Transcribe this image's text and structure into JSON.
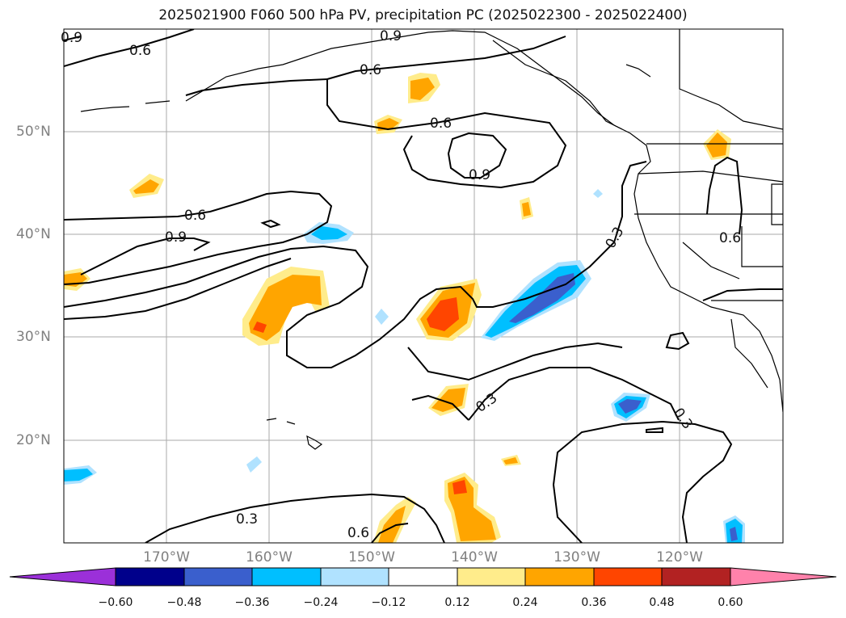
{
  "title": "2025021900 F060 500 hPa PV, precipitation PC (2025022300 - 2025022400)",
  "longitude_labels": [
    "170°W",
    "160°W",
    "150°W",
    "140°W",
    "130°W",
    "120°W"
  ],
  "latitude_labels": [
    "50°N",
    "40°N",
    "30°N",
    "20°N"
  ],
  "contour_labels": [
    "0.9",
    "0.6",
    "0.9",
    "0.6",
    "0.6",
    "0.9",
    "0.6",
    "0.9",
    "0.3",
    "0.6",
    "0.3",
    "0.3",
    "0.3",
    "0.6"
  ],
  "colorbar": {
    "ticks": [
      "−0.60",
      "−0.48",
      "−0.36",
      "−0.24",
      "−0.12",
      "0.12",
      "0.24",
      "0.36",
      "0.48",
      "0.60"
    ],
    "colors": [
      "#9b30d9",
      "#00008b",
      "#3a5fcd",
      "#00bfff",
      "#b0e2ff",
      "#ffffff",
      "#ffec8b",
      "#ffa500",
      "#ff4500",
      "#b22222",
      "#ff82ab"
    ]
  },
  "colors": {
    "pos_light": "#ffec8b",
    "pos_mid": "#ffa500",
    "pos_strong": "#ff4500",
    "neg_light": "#b0e2ff",
    "neg_mid": "#00bfff",
    "neg_strong": "#3a5fcd",
    "neg_deep": "#3a5fcd"
  }
}
